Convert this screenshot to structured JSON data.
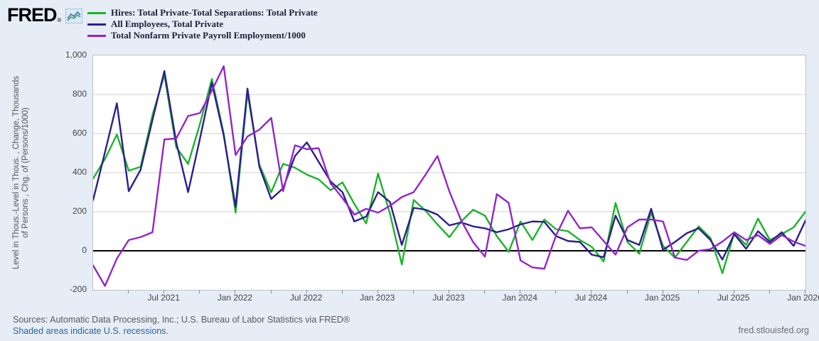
{
  "header": {
    "logo_text": "FRED",
    "registered_mark": "®"
  },
  "legend": [
    {
      "label": "Hires: Total Private-Total Separations: Total Private",
      "color": "#1cb32b"
    },
    {
      "label": "All Employees, Total Private",
      "color": "#2d1e8c"
    },
    {
      "label": "Total Nonfarm Private Payroll Employment/1000",
      "color": "#9326cb"
    }
  ],
  "y_axis": {
    "label_line1": "Level in Thous.-Level in Thous. , Change, Thousands",
    "label_line2": "of Persons , Chg. of (Persons/1000)",
    "ticks": [
      {
        "label": "1,000",
        "value": 1000
      },
      {
        "label": "800",
        "value": 800
      },
      {
        "label": "600",
        "value": 600
      },
      {
        "label": "400",
        "value": 400
      },
      {
        "label": "200",
        "value": 200
      },
      {
        "label": "0",
        "value": 0
      },
      {
        "label": "-200",
        "value": -200
      }
    ]
  },
  "x_axis": {
    "major_ticks": [
      {
        "label": "Jul 2021",
        "m": 6
      },
      {
        "label": "Jan 2022",
        "m": 12
      },
      {
        "label": "Jul 2022",
        "m": 18
      },
      {
        "label": "Jan 2023",
        "m": 24
      },
      {
        "label": "Jul 2023",
        "m": 30
      },
      {
        "label": "Jan 2024",
        "m": 36
      },
      {
        "label": "Jul 2024",
        "m": 42
      },
      {
        "label": "Jan 2025",
        "m": 48
      },
      {
        "label": "Jul 2025",
        "m": 54
      },
      {
        "label": "Jan 2026",
        "m": 60
      }
    ],
    "minor_tick_every": 3
  },
  "footer": {
    "sources": "Sources: Automatic Data Processing, Inc.; U.S. Bureau of Labor Statistics via FRED®",
    "recession_note": "Shaded areas indicate U.S. recessions.",
    "site": "fred.stlouisfed.org"
  },
  "chart_data": {
    "type": "line",
    "frequency": "monthly",
    "start": "Jan 2021",
    "end": "Jan 2026",
    "months_total": 61,
    "ylim": [
      -200,
      1000
    ],
    "gridline_values": [
      800,
      600,
      400,
      200
    ],
    "zero_line": true,
    "grid": "horizontal-only",
    "legend_position": "top-left",
    "series": [
      {
        "name": "Hires: Total Private-Total Separations: Total Private",
        "color": "#1cb32b",
        "values": [
          370,
          470,
          595,
          410,
          430,
          695,
          900,
          530,
          445,
          650,
          880,
          600,
          195,
          810,
          440,
          300,
          445,
          425,
          390,
          365,
          310,
          350,
          240,
          140,
          395,
          190,
          -70,
          260,
          205,
          135,
          70,
          150,
          210,
          180,
          75,
          -5,
          150,
          55,
          160,
          110,
          100,
          55,
          20,
          -55,
          245,
          45,
          -15,
          195,
          25,
          -35,
          45,
          125,
          65,
          -115,
          90,
          30,
          165,
          55,
          85,
          120,
          200
        ]
      },
      {
        "name": "All Employees, Total Private",
        "color": "#2d1e8c",
        "values": [
          260,
          505,
          755,
          305,
          415,
          670,
          920,
          555,
          300,
          575,
          860,
          590,
          225,
          830,
          430,
          265,
          320,
          485,
          555,
          455,
          355,
          300,
          150,
          175,
          300,
          250,
          30,
          220,
          210,
          185,
          130,
          145,
          125,
          115,
          95,
          110,
          135,
          150,
          148,
          75,
          50,
          45,
          -20,
          -33,
          180,
          55,
          30,
          215,
          5,
          45,
          90,
          115,
          55,
          -45,
          85,
          10,
          100,
          45,
          95,
          25,
          155
        ]
      },
      {
        "name": "Total Nonfarm Private Payroll Employment/1000",
        "color": "#9326cb",
        "values": [
          -75,
          -180,
          -40,
          55,
          70,
          95,
          570,
          575,
          690,
          705,
          820,
          945,
          490,
          585,
          620,
          680,
          305,
          540,
          520,
          525,
          345,
          270,
          185,
          215,
          195,
          230,
          275,
          300,
          390,
          485,
          305,
          155,
          45,
          -30,
          290,
          245,
          -50,
          -85,
          -92,
          80,
          205,
          115,
          120,
          50,
          -20,
          120,
          160,
          160,
          150,
          -35,
          -47,
          0,
          8,
          47,
          95,
          55,
          80,
          35,
          80,
          47,
          25
        ]
      }
    ]
  }
}
